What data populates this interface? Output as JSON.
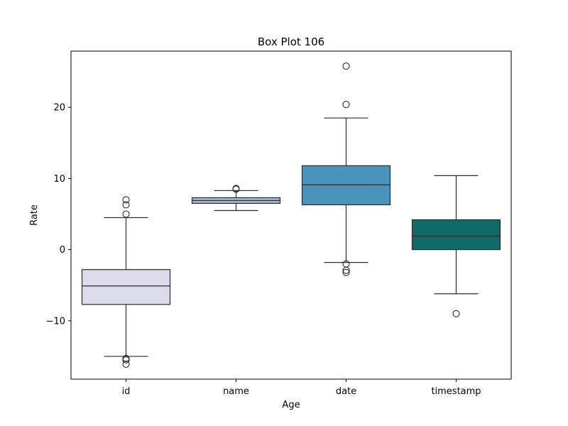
{
  "chart_data": {
    "type": "box",
    "title": "Box Plot 106",
    "xlabel": "Age",
    "ylabel": "Rate",
    "ylim": [
      -18.2,
      27.9
    ],
    "yticks": [
      -10,
      0,
      10,
      20
    ],
    "ytick_labels": [
      "−10",
      "0",
      "10",
      "20"
    ],
    "grid": false,
    "legend": "none",
    "categories": [
      "id",
      "name",
      "date",
      "timestamp"
    ],
    "boxes": [
      {
        "category": "id",
        "color": "#dcdbeb",
        "whisker_low": -15.0,
        "q1": -7.7,
        "median": -5.1,
        "q3": -2.8,
        "whisker_high": 4.5,
        "outliers": [
          7.0,
          6.3,
          5.0,
          -15.3,
          -15.5,
          -16.1
        ]
      },
      {
        "category": "name",
        "color": "#9fb5d6",
        "whisker_low": 5.5,
        "q1": 6.5,
        "median": 6.9,
        "q3": 7.3,
        "whisker_high": 8.3,
        "outliers": [
          8.5,
          8.6
        ]
      },
      {
        "category": "date",
        "color": "#4a93bd",
        "whisker_low": -1.8,
        "q1": 6.3,
        "median": 9.1,
        "q3": 11.8,
        "whisker_high": 18.5,
        "outliers": [
          25.8,
          20.4,
          -2.0,
          -2.9,
          -3.2
        ]
      },
      {
        "category": "timestamp",
        "color": "#0e6b6a",
        "whisker_low": -6.2,
        "q1": 0.0,
        "median": 1.9,
        "q3": 4.2,
        "whisker_high": 10.4,
        "outliers": [
          -9.0
        ]
      }
    ]
  }
}
